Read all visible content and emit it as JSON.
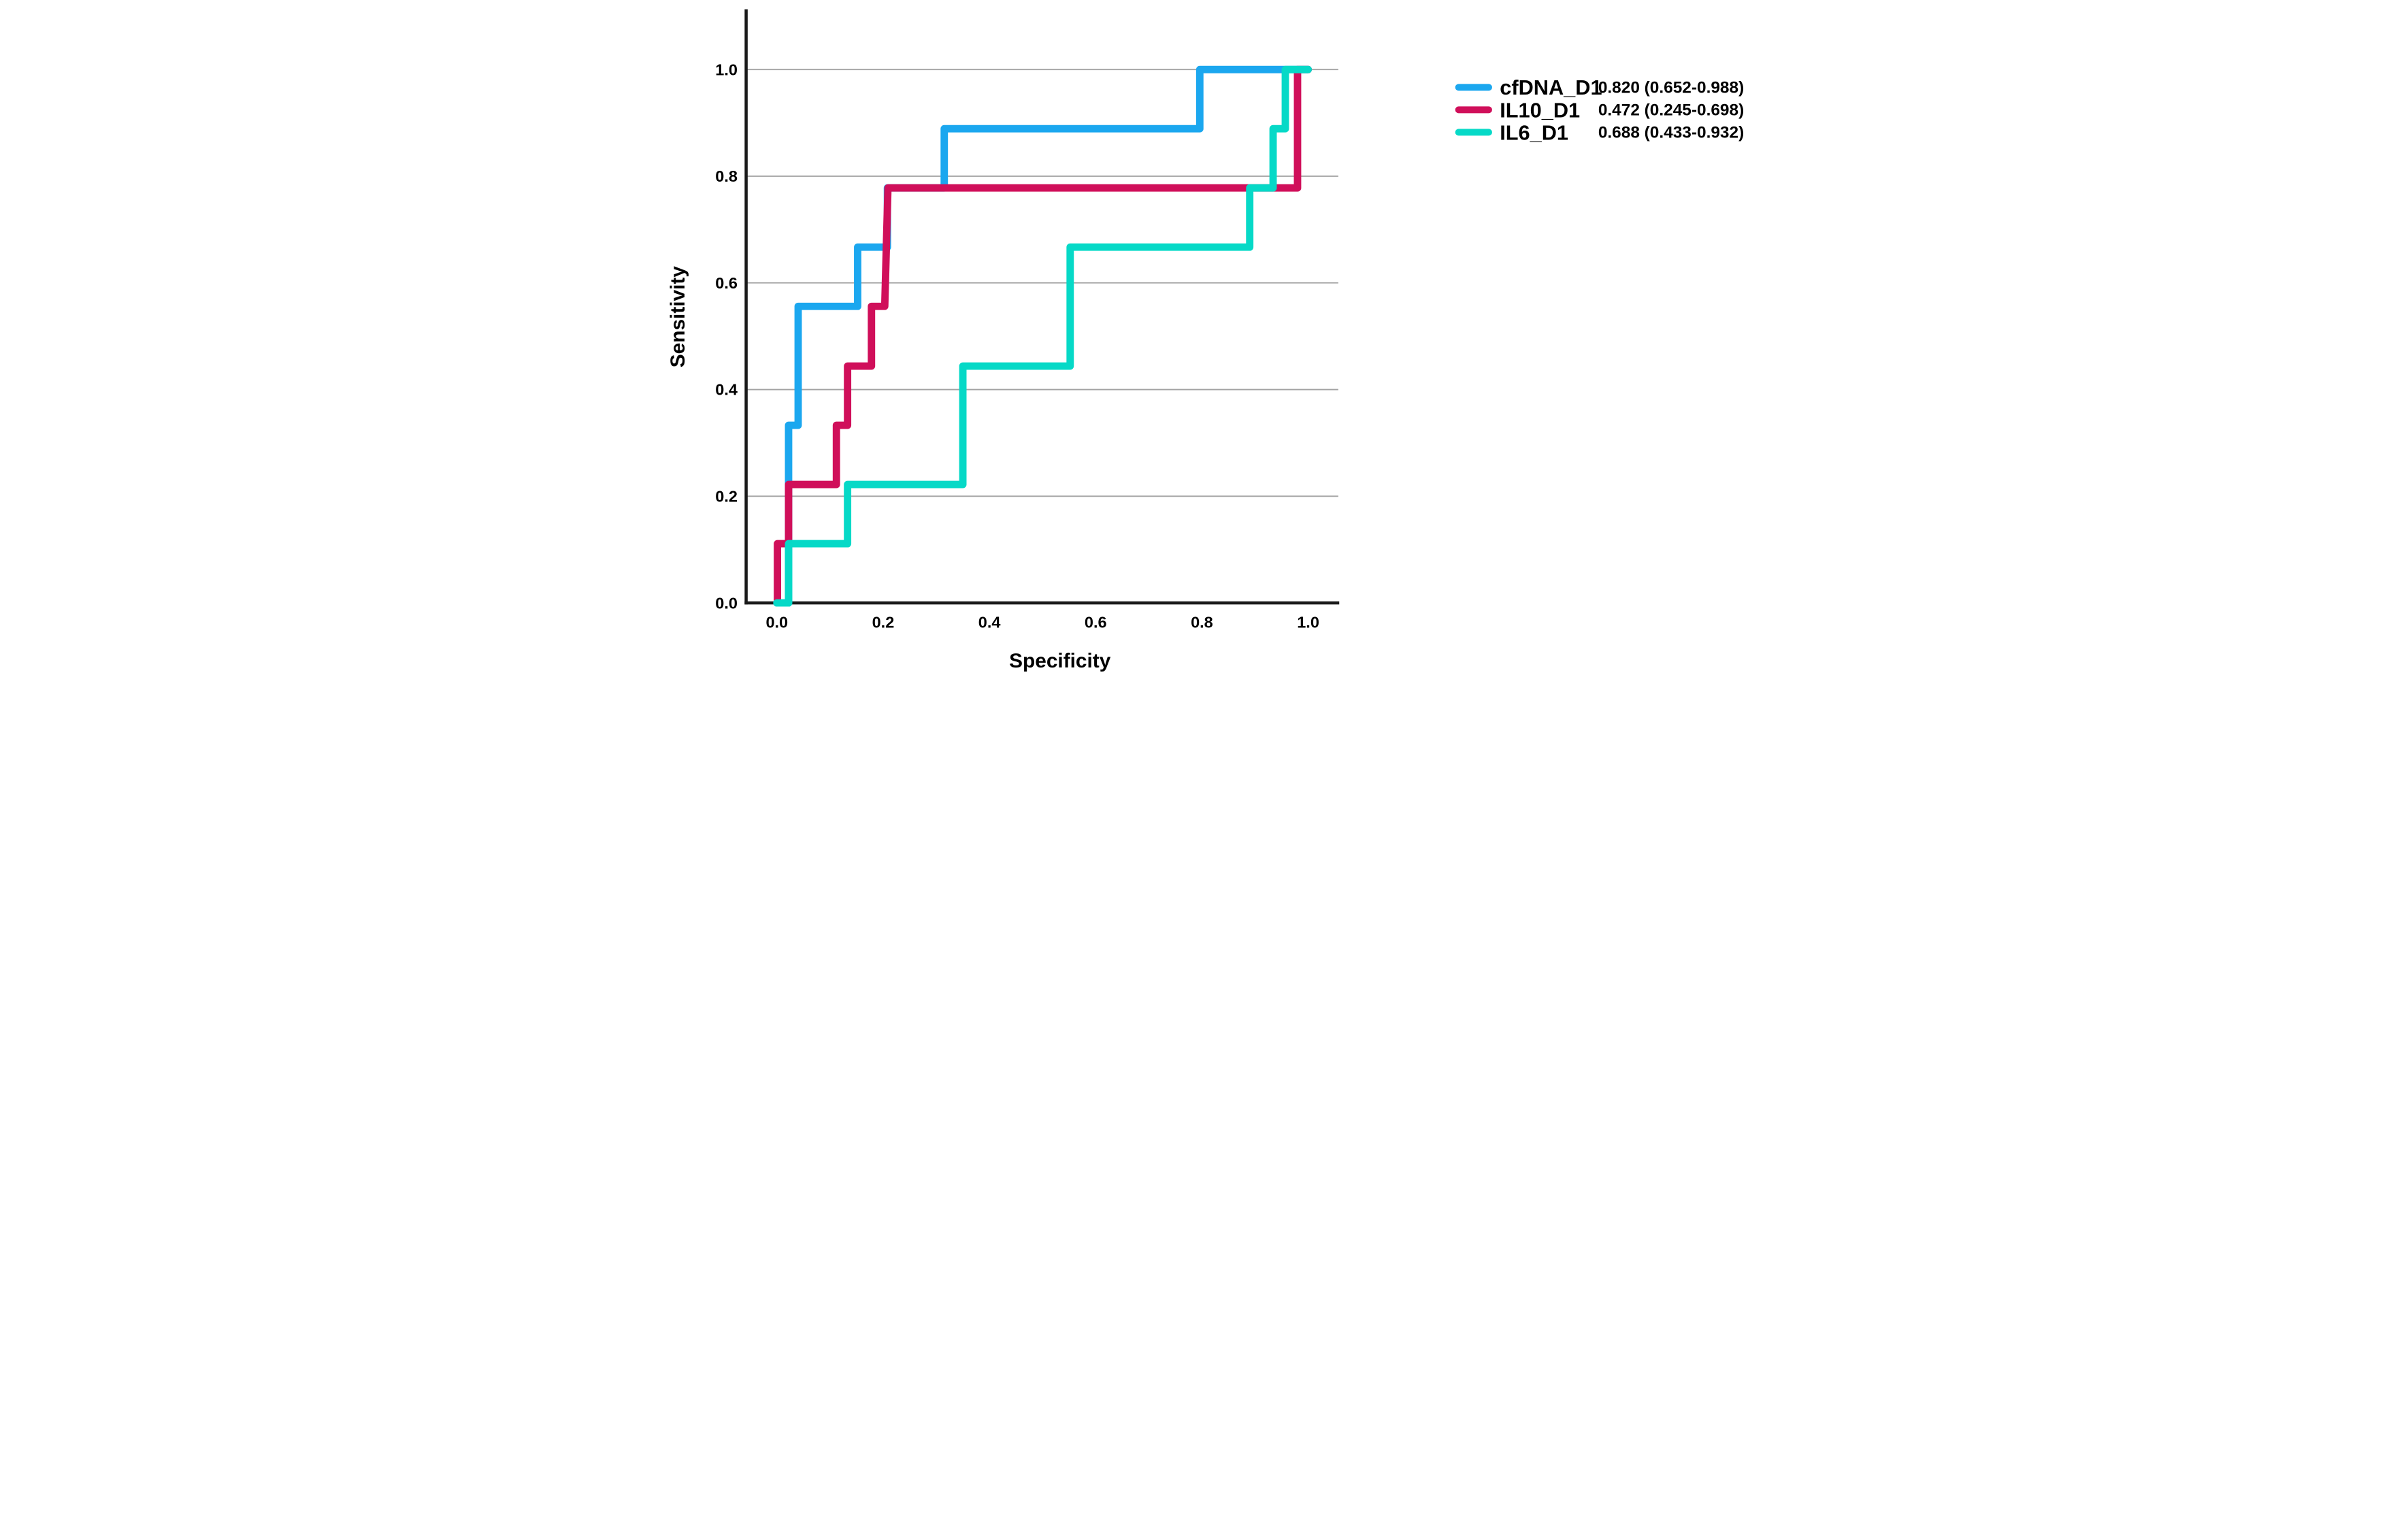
{
  "figure": {
    "kind": "ROC curve figure",
    "background": "#ffffff"
  },
  "chart_data": {
    "type": "line",
    "subtype": "roc-step",
    "title": "",
    "xlabel": "Specificity",
    "ylabel": "Sensitivity",
    "xlim": [
      -0.058,
      1.058
    ],
    "ylim": [
      0,
      1.12
    ],
    "x_ticks": [
      0.0,
      0.2,
      0.4,
      0.6,
      0.8,
      1.0
    ],
    "y_ticks": [
      0.0,
      0.2,
      0.4,
      0.6,
      0.8,
      1.0
    ],
    "x_tick_labels": [
      "0.0",
      "0.2",
      "0.4",
      "0.6",
      "0.8",
      "1.0"
    ],
    "y_tick_labels": [
      "0.0",
      "0.2",
      "0.4",
      "0.6",
      "0.8",
      "1.0"
    ],
    "grid": "horizontal-only",
    "gridline_color": "#a3a3a3",
    "axis_color": "#1a1a1a",
    "legend_position": "outside-top-right",
    "series": [
      {
        "name": "cfDNA_D1",
        "color": "#1BA7EF",
        "auc_label": "0.820 (0.652-0.988)",
        "auc": 0.82,
        "ci_low": 0.652,
        "ci_high": 0.988,
        "points": [
          [
            0.0,
            0.0
          ],
          [
            0.022,
            0.0
          ],
          [
            0.022,
            0.333
          ],
          [
            0.04,
            0.333
          ],
          [
            0.04,
            0.556
          ],
          [
            0.152,
            0.556
          ],
          [
            0.152,
            0.667
          ],
          [
            0.208,
            0.667
          ],
          [
            0.208,
            0.778
          ],
          [
            0.315,
            0.778
          ],
          [
            0.315,
            0.889
          ],
          [
            0.796,
            0.889
          ],
          [
            0.796,
            1.0
          ],
          [
            1.0,
            1.0
          ]
        ]
      },
      {
        "name": "IL10_D1",
        "color": "#D00F5A",
        "auc_label": "0.472 (0.245-0.698)",
        "auc": 0.472,
        "ci_low": 0.245,
        "ci_high": 0.698,
        "points": [
          [
            0.001,
            0.0
          ],
          [
            0.001,
            0.111
          ],
          [
            0.022,
            0.111
          ],
          [
            0.022,
            0.222
          ],
          [
            0.112,
            0.222
          ],
          [
            0.112,
            0.333
          ],
          [
            0.133,
            0.333
          ],
          [
            0.133,
            0.444
          ],
          [
            0.178,
            0.444
          ],
          [
            0.178,
            0.556
          ],
          [
            0.203,
            0.556
          ],
          [
            0.206,
            0.667
          ],
          [
            0.209,
            0.778
          ],
          [
            0.98,
            0.778
          ],
          [
            0.98,
            1.0
          ],
          [
            1.0,
            1.0
          ]
        ]
      },
      {
        "name": "IL6_D1",
        "color": "#06D9C7",
        "auc_label": "0.688 (0.433-0.932)",
        "auc": 0.688,
        "ci_low": 0.433,
        "ci_high": 0.932,
        "points": [
          [
            0.0,
            0.0
          ],
          [
            0.022,
            0.0
          ],
          [
            0.022,
            0.111
          ],
          [
            0.133,
            0.111
          ],
          [
            0.133,
            0.222
          ],
          [
            0.35,
            0.222
          ],
          [
            0.35,
            0.444
          ],
          [
            0.552,
            0.444
          ],
          [
            0.552,
            0.667
          ],
          [
            0.89,
            0.667
          ],
          [
            0.89,
            0.778
          ],
          [
            0.934,
            0.778
          ],
          [
            0.934,
            0.889
          ],
          [
            0.957,
            0.889
          ],
          [
            0.957,
            1.0
          ],
          [
            1.0,
            1.0
          ]
        ]
      }
    ]
  },
  "legend": {
    "items": [
      {
        "label": "cfDNA_D1",
        "value": "0.820 (0.652-0.988)",
        "color": "#1BA7EF"
      },
      {
        "label": "IL10_D1",
        "value": "0.472 (0.245-0.698)",
        "color": "#D00F5A"
      },
      {
        "label": "IL6_D1",
        "value": "0.688 (0.433-0.932)",
        "color": "#06D9C7"
      }
    ]
  }
}
